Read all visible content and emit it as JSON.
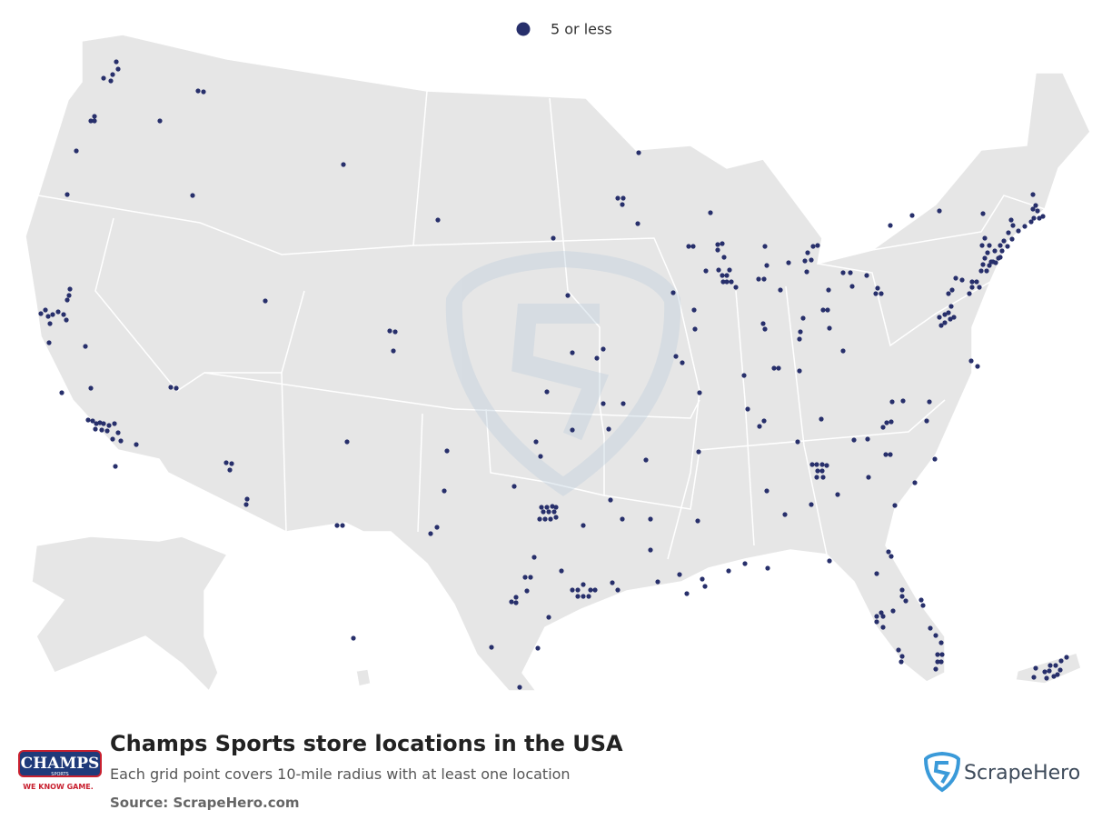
{
  "legend": {
    "label": "5 or less"
  },
  "title": "Champs Sports store locations in the USA",
  "subtitle": "Each grid point covers 10-mile radius with at least one location",
  "source": "Source: ScrapeHero.com",
  "brand_logo": {
    "name": "CHAMPS",
    "line": "SPORTS",
    "tagline": "WE KNOW GAME."
  },
  "publisher_logo": {
    "name": "ScrapeHero"
  }
}
